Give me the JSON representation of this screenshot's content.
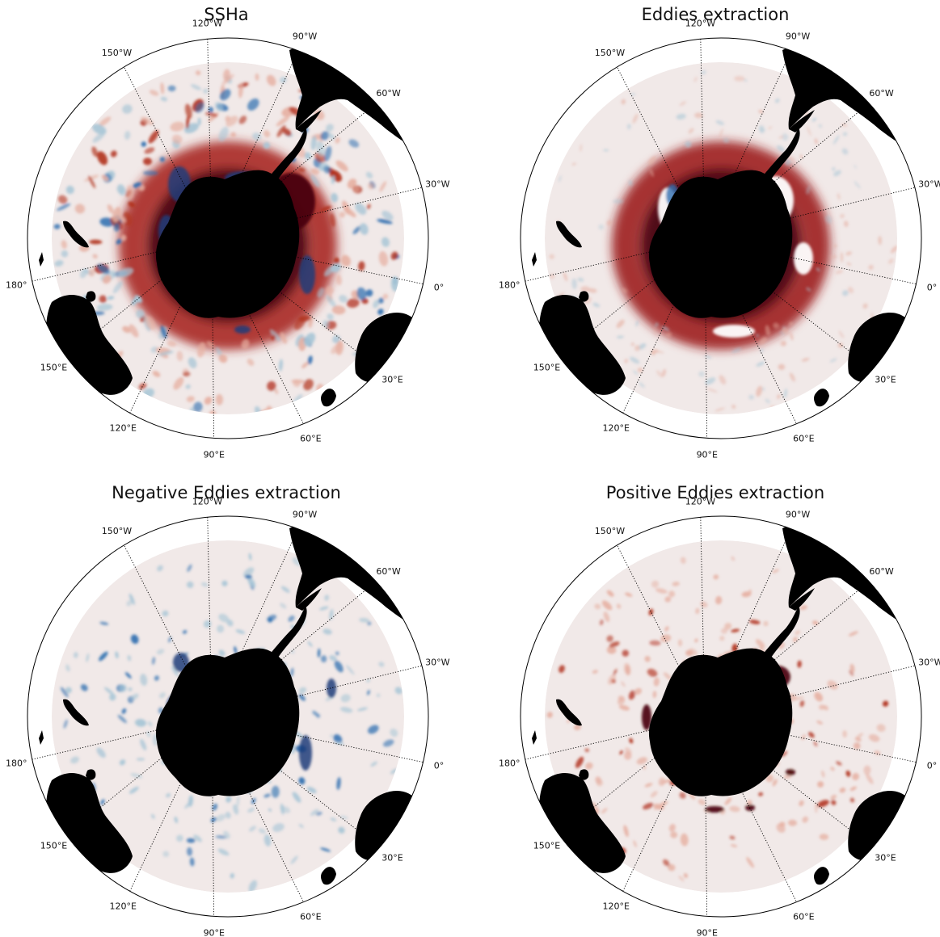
{
  "figure": {
    "panels": [
      {
        "id": "ssha",
        "title": "SSHa",
        "style": "ssha",
        "cmap": "balance"
      },
      {
        "id": "eddies",
        "title": "Eddies extraction",
        "style": "eddies",
        "cmap": "balance"
      },
      {
        "id": "negative",
        "title": "Negative Eddies extraction",
        "style": "negative",
        "cmap": "blues"
      },
      {
        "id": "positive",
        "title": "Positive Eddies extraction",
        "style": "positive",
        "cmap": "reds"
      }
    ],
    "longitude_labels": [
      {
        "lon": -90,
        "text": "90°W"
      },
      {
        "lon": -60,
        "text": "60°W"
      },
      {
        "lon": -30,
        "text": "30°W"
      },
      {
        "lon": 0,
        "text": "0°"
      },
      {
        "lon": 30,
        "text": "30°E"
      },
      {
        "lon": 60,
        "text": "60°E"
      },
      {
        "lon": 90,
        "text": "90°E"
      },
      {
        "lon": 120,
        "text": "120°E"
      },
      {
        "lon": 150,
        "text": "150°E"
      },
      {
        "lon": 180,
        "text": "180°"
      },
      {
        "lon": -150,
        "text": "150°W"
      },
      {
        "lon": -120,
        "text": "120°W"
      }
    ],
    "projection": "south-polar stereographic (tilted)",
    "land_color": "#000000",
    "ocean_background": "#f1e9e8",
    "colors": {
      "deep_red": "#4a0208",
      "red": "#b2331f",
      "light_red": "#e6b0a2",
      "deep_blue": "#1c3c7a",
      "blue": "#2f6fb0",
      "light_blue": "#a9c6d6"
    }
  }
}
